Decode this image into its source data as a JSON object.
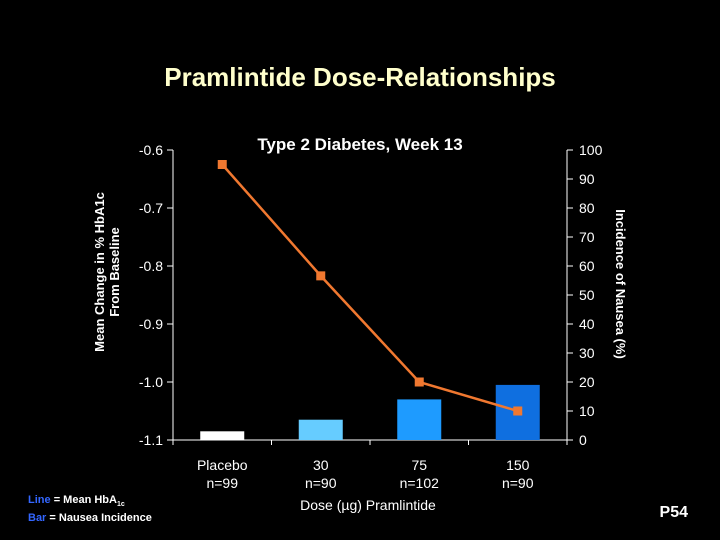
{
  "slide": {
    "title": "Pramlintide Dose-Relationships",
    "code": "P54"
  },
  "legend": {
    "line_key": "Line",
    "line_text": "= Mean HbA",
    "line_sub": "1c",
    "bar_key": "Bar",
    "bar_text": "= Nausea Incidence"
  },
  "chart_data": {
    "type": "bar",
    "title": "Type 2 Diabetes, Week 13",
    "xlabel": "Dose (µg) Pramlintide",
    "categories": [
      "Placebo\nn=99",
      "30\nn=90",
      "75\nn=102",
      "150\nn=90"
    ],
    "left_axis": {
      "label": "Mean Change in % HbA1c\nFrom Baseline",
      "range": [
        -1.1,
        -0.6
      ],
      "ticks": [
        "-0.6",
        "-0.7",
        "-0.8",
        "-0.9",
        "-1.0",
        "-1.1"
      ]
    },
    "right_axis": {
      "label": "Incidence of Nausea (%)",
      "range": [
        0,
        100
      ],
      "ticks": [
        "0",
        "10",
        "20",
        "30",
        "40",
        "50",
        "60",
        "70",
        "80",
        "90",
        "100"
      ]
    },
    "series": [
      {
        "kind": "bar",
        "axis": "right",
        "values": [
          3,
          7,
          14,
          19
        ],
        "colors": [
          "#FFFFFF",
          "#66CCFF",
          "#1E9BFF",
          "#0F6FE0"
        ]
      },
      {
        "kind": "line",
        "axis": "left",
        "values": [
          -0.625,
          -0.817,
          -1.0,
          -1.05
        ],
        "color": "#F07830"
      }
    ],
    "grid": false
  }
}
